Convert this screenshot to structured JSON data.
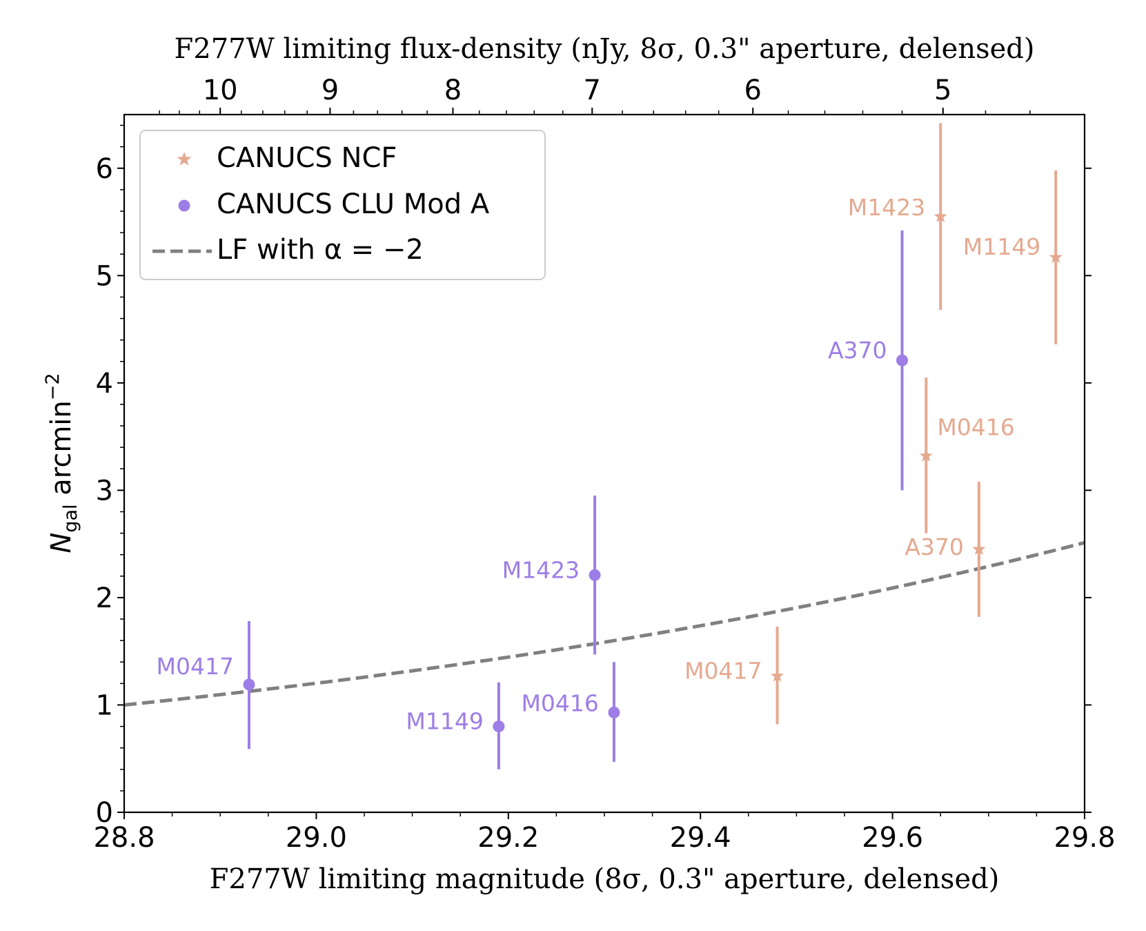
{
  "chart_data": {
    "type": "scatter",
    "xlabel": "F277W limiting magnitude (8σ, 0.3\" aperture, delensed)",
    "ylabel": "N_gal arcmin^-2",
    "ylabel_main": "N",
    "ylabel_sub": "gal",
    "ylabel_rest": " arcmin",
    "ylabel_sup": "−2",
    "top_xlabel": "F277W limiting flux-density (nJy, 8σ, 0.3\" aperture, delensed)",
    "xlim": [
      28.8,
      29.8
    ],
    "ylim": [
      0,
      6.5
    ],
    "x_ticks": [
      "28.8",
      "29.0",
      "29.2",
      "29.4",
      "29.6",
      "29.8"
    ],
    "y_ticks": [
      "0",
      "1",
      "2",
      "3",
      "4",
      "5",
      "6"
    ],
    "top_ticks": [
      "10",
      "9",
      "8",
      "7",
      "6",
      "5"
    ],
    "legend": {
      "position": "top-left",
      "entries": [
        "CANUCS NCF",
        "CANUCS CLU Mod A",
        "LF with α = −2"
      ]
    },
    "colors": {
      "ncf": "#e5a990",
      "clu": "#9d7de6",
      "lf": "#808080"
    },
    "series": [
      {
        "name": "CANUCS NCF",
        "marker": "star",
        "points": [
          {
            "label": "M1423",
            "x": 29.65,
            "y": 5.55,
            "ylo": 4.68,
            "yhi": 6.42
          },
          {
            "label": "M1149",
            "x": 29.77,
            "y": 5.17,
            "ylo": 4.36,
            "yhi": 5.98
          },
          {
            "label": "M0416",
            "x": 29.635,
            "y": 3.32,
            "ylo": 2.6,
            "yhi": 4.05
          },
          {
            "label": "A370",
            "x": 29.69,
            "y": 2.45,
            "ylo": 1.82,
            "yhi": 3.08
          },
          {
            "label": "M0417",
            "x": 29.48,
            "y": 1.27,
            "ylo": 0.82,
            "yhi": 1.73
          }
        ]
      },
      {
        "name": "CANUCS CLU Mod A",
        "marker": "circle",
        "points": [
          {
            "label": "A370",
            "x": 29.61,
            "y": 4.21,
            "ylo": 3.0,
            "yhi": 5.42
          },
          {
            "label": "M1423",
            "x": 29.29,
            "y": 2.21,
            "ylo": 1.47,
            "yhi": 2.95
          },
          {
            "label": "M0417",
            "x": 28.93,
            "y": 1.19,
            "ylo": 0.59,
            "yhi": 1.78
          },
          {
            "label": "M1149",
            "x": 29.19,
            "y": 0.8,
            "ylo": 0.4,
            "yhi": 1.21
          },
          {
            "label": "M0416",
            "x": 29.31,
            "y": 0.93,
            "ylo": 0.47,
            "yhi": 1.4
          }
        ]
      },
      {
        "name": "LF with α = −2",
        "style": "dashed",
        "function": "y = 10^(0.4*(x-28.8))",
        "x": [
          28.8,
          29.0,
          29.2,
          29.4,
          29.6,
          29.8
        ]
      }
    ]
  }
}
